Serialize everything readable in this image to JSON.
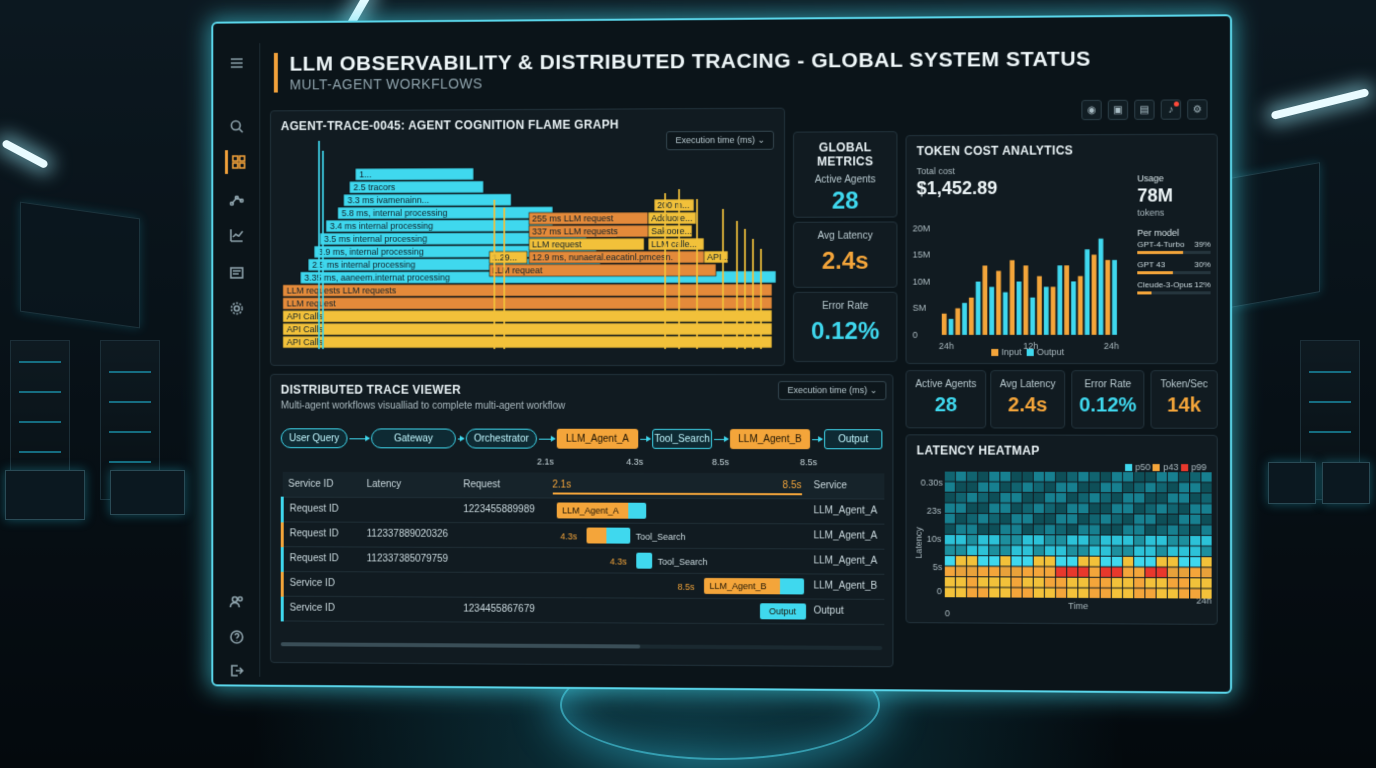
{
  "header": {
    "title": "LLM OBSERVABILITY & DISTRIBUTED TRACING - GLOBAL SYSTEM STATUS",
    "subtitle": "MULT-AGENT WORKFLOWS"
  },
  "flame": {
    "title": "AGENT-TRACE-0045: AGENT COGNITION FLAME GRAPH",
    "dropdown": "Execution time (ms)",
    "left_frames": [
      "1...",
      "2.5 tracors",
      "3.3 ms ivamenainn...",
      "5.8 ms, internal processing",
      "3.4 ms internal processing",
      "3.5 ms internal processing",
      "3.9 ms, internal processing",
      "2.5 ms internal processing",
      "3.35 ms, aaneem.internat processing",
      "LLM requests LLM requests",
      "LLM request",
      "API Calls",
      "API Calls",
      "API Calls"
    ],
    "right_frames": [
      "255 ms LLM request",
      "337 ms LLM requests",
      "LLM request",
      "1.29...",
      "12.9 ms, nunaeral.eacatinl.pmcesn.",
      "LLM requeat",
      "200 m...",
      "Adduore...",
      "Sakoore...",
      "LLM calle...",
      "API..."
    ]
  },
  "global_metrics": {
    "title": "GLOBAL METRICS",
    "active_agents_label": "Active Agents",
    "active_agents": "28",
    "avg_latency_label": "Avg Latency",
    "avg_latency": "2.4s",
    "error_rate_label": "Error Rate",
    "error_rate": "0.12%"
  },
  "token_cost": {
    "title": "TOKEN COST ANALYTICS",
    "total_label": "Total cost",
    "total": "$1,452.89",
    "usage_label": "Usage",
    "usage": "78M",
    "usage_unit": "tokens",
    "per_model_label": "Per model",
    "models": [
      {
        "name": "GPT-4-Turbo",
        "pct": "39%",
        "value": 0.39
      },
      {
        "name": "GPT 43",
        "pct": "30%",
        "value": 0.3
      },
      {
        "name": "Cleude-3-Opus",
        "pct": "12%",
        "value": 0.12
      }
    ],
    "legend_input": "Input",
    "legend_output": "Output"
  },
  "chart_data": {
    "type": "bar",
    "categories": [
      "24h",
      "",
      "",
      "",
      "",
      "",
      "12h",
      "",
      "",
      "",
      "",
      "",
      "24h"
    ],
    "series": [
      {
        "name": "Input",
        "values": [
          4,
          5,
          7,
          13,
          12,
          14,
          13,
          11,
          9,
          13,
          11,
          15,
          14
        ]
      },
      {
        "name": "Output",
        "values": [
          3,
          6,
          10,
          9,
          8,
          10,
          7,
          9,
          13,
          10,
          16,
          18,
          14
        ]
      }
    ],
    "yticks": [
      "20M",
      "15M",
      "10M",
      "SM",
      "0"
    ],
    "xticks": [
      "24h",
      "12h",
      "24h"
    ],
    "ylim": [
      0,
      20
    ],
    "colors": {
      "Input": "#f4a53a",
      "Output": "#3fd8ee"
    }
  },
  "trace": {
    "title": "DISTRIBUTED TRACE VIEWER",
    "subtitle": "Multi-agent workflows visualliad to complete multi-agent workflow",
    "dropdown": "Execution time (ms)",
    "flow": [
      "User Query",
      "Gateway",
      "Orchestrator",
      "LLM_Agent_A",
      "Tool_Search",
      "LLM_Agent_B",
      "Output"
    ],
    "timeline_top": [
      "2.1s",
      "4.3s",
      "8.5s",
      "8.5s"
    ],
    "columns": [
      "Service ID",
      "Latency",
      "Request",
      "2.1s",
      "8.5s",
      "Service"
    ],
    "rows": [
      {
        "id": "Request ID",
        "latency": "",
        "request": "1223455889989",
        "bar": "LLM_Agent_A",
        "bar_time": "",
        "service": "LLM_Agent_A"
      },
      {
        "id": "Request ID",
        "latency": "112337889020326",
        "request": "",
        "bar": "Tool_Search",
        "bar_time": "4.3s",
        "service": "LLM_Agent_A"
      },
      {
        "id": "Request ID",
        "latency": "112337385079759",
        "request": "",
        "bar": "Tool_Search",
        "bar_time": "4.3s",
        "service": "LLM_Agent_A"
      },
      {
        "id": "Service ID",
        "latency": "",
        "request": "",
        "bar": "LLM_Agent_B",
        "bar_time": "8.5s",
        "service": "LLM_Agent_B"
      },
      {
        "id": "Service ID",
        "latency": "",
        "request": "1234455867679",
        "bar": "Output",
        "bar_time": "",
        "service": "Output"
      }
    ]
  },
  "mini_metrics": [
    {
      "label": "Active Agents",
      "value": "28"
    },
    {
      "label": "Avg Latency",
      "value": "2.4s"
    },
    {
      "label": "Error Rate",
      "value": "0.12%"
    },
    {
      "label": "Token/Sec",
      "value": "14k"
    }
  ],
  "heatmap": {
    "title": "LATENCY HEATMAP",
    "legend": [
      "p50",
      "p43",
      "p99"
    ],
    "yticks": [
      "0.30s",
      "23s",
      "10s",
      "5s",
      "0"
    ],
    "xticks": [
      "0",
      "Time",
      "24h"
    ],
    "ylabel": "Latency"
  }
}
